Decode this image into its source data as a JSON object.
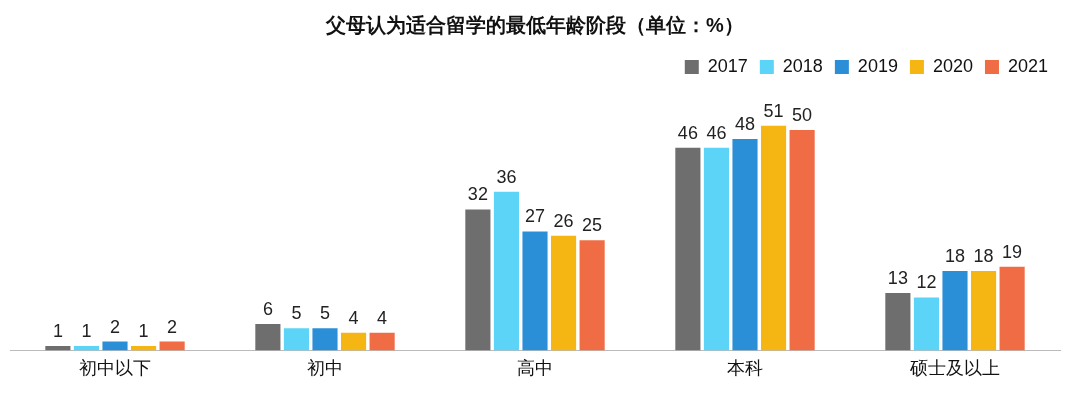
{
  "chart_data": {
    "type": "bar",
    "title": "父母认为适合留学的最低年龄阶段（单位：%）",
    "categories": [
      "初中以下",
      "初中",
      "高中",
      "本科",
      "硕士及以上"
    ],
    "series": [
      {
        "name": "2017",
        "color": "#6e6e6e",
        "values": [
          1,
          6,
          32,
          46,
          13
        ]
      },
      {
        "name": "2018",
        "color": "#5cd4f7",
        "values": [
          1,
          5,
          36,
          46,
          12
        ]
      },
      {
        "name": "2019",
        "color": "#2b8fd8",
        "values": [
          2,
          5,
          27,
          48,
          18
        ]
      },
      {
        "name": "2020",
        "color": "#f5b512",
        "values": [
          1,
          4,
          26,
          51,
          18
        ]
      },
      {
        "name": "2021",
        "color": "#f06c45",
        "values": [
          2,
          4,
          25,
          50,
          19
        ]
      }
    ],
    "data_labels": true,
    "legend": "top right",
    "grid": false
  }
}
